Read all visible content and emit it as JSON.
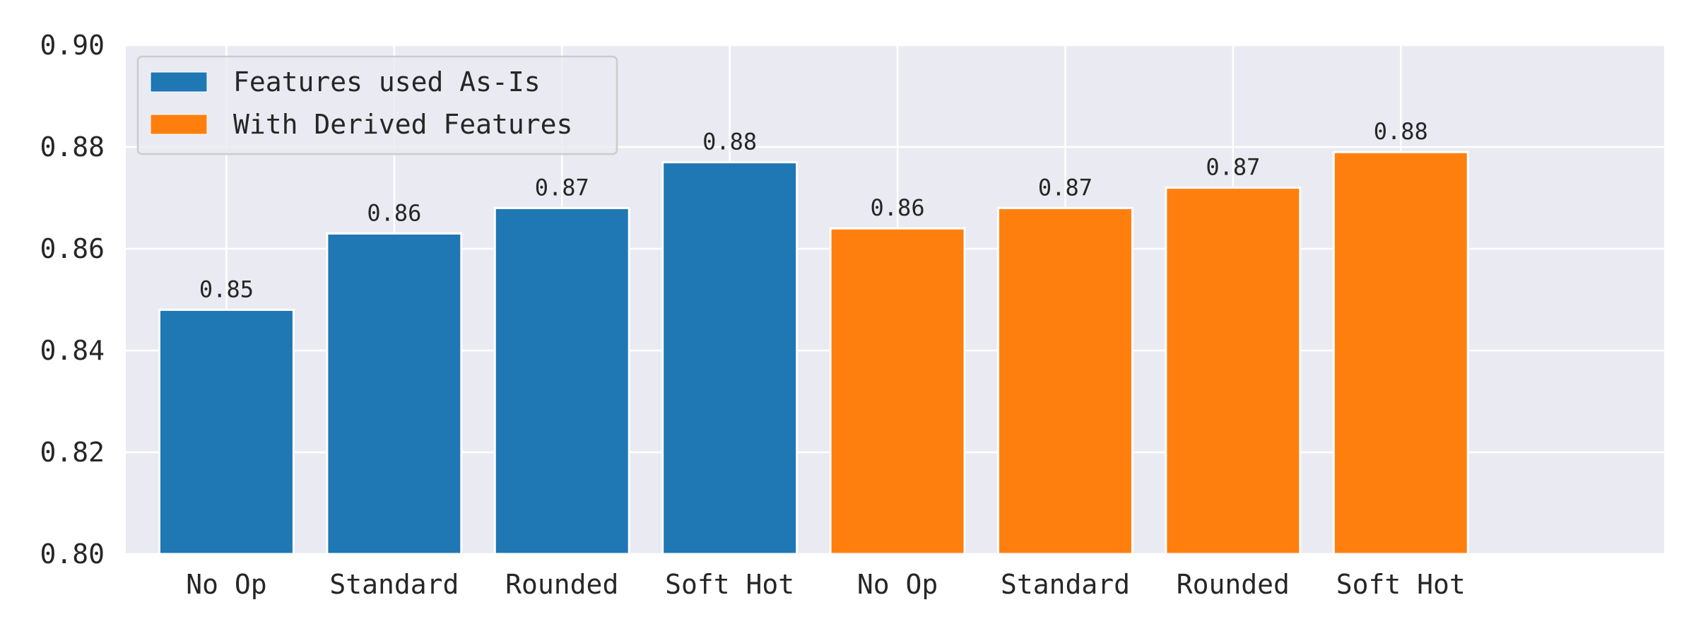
{
  "chart_data": {
    "type": "bar",
    "categories": [
      "No Op",
      "Standard",
      "Rounded",
      "Soft Hot",
      "No Op",
      "Standard",
      "Rounded",
      "Soft Hot"
    ],
    "values": [
      0.848,
      0.863,
      0.868,
      0.877,
      0.864,
      0.868,
      0.872,
      0.879
    ],
    "value_labels": [
      "0.85",
      "0.86",
      "0.87",
      "0.88",
      "0.86",
      "0.87",
      "0.87",
      "0.88"
    ],
    "bar_series": [
      0,
      0,
      0,
      0,
      1,
      1,
      1,
      1
    ],
    "series": [
      {
        "name": "Features used As-Is",
        "color": "#1f77b4"
      },
      {
        "name": "With Derived Features",
        "color": "#ff7f0e"
      }
    ],
    "ylim": [
      0.8,
      0.9
    ],
    "yticks": [
      "0.80",
      "0.82",
      "0.84",
      "0.86",
      "0.88",
      "0.90"
    ],
    "ytick_values": [
      0.8,
      0.82,
      0.84,
      0.86,
      0.88,
      0.9
    ],
    "title": "",
    "xlabel": "",
    "ylabel": "",
    "grid": true,
    "legend_position": "top-left",
    "plot_background": "#eaeaf2",
    "grid_color": "#ffffff"
  }
}
